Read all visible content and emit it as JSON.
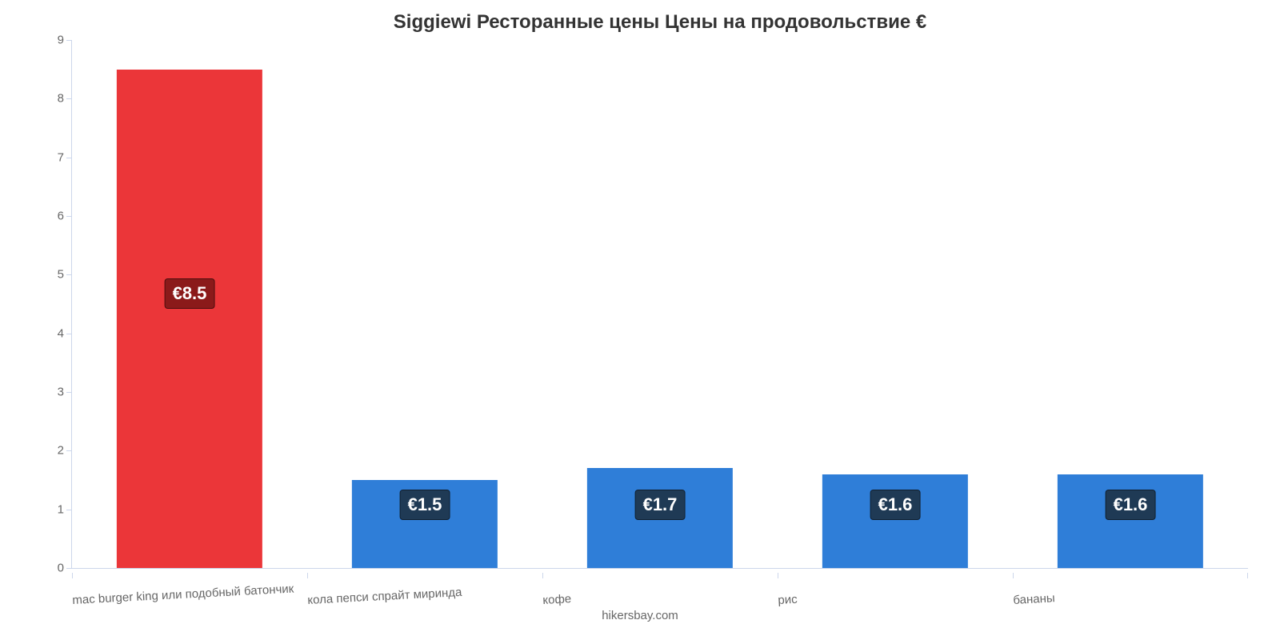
{
  "chart": {
    "type": "bar",
    "title": "Siggiewi Ресторанные цены Цены на продовольствие €",
    "title_fontsize": 24,
    "title_color": "#333333",
    "background_color": "#ffffff",
    "axis_line_color": "#ccd6eb",
    "tick_font_color": "#666666",
    "tick_fontsize": 15,
    "ylim": [
      0,
      9
    ],
    "yticks": [
      0,
      1,
      2,
      3,
      4,
      5,
      6,
      7,
      8,
      9
    ],
    "bar_width_ratio": 0.62,
    "label_fontsize": 22,
    "label_bg_dark_red": "#8b1a1a",
    "label_bg_dark_blue": "#1f3a55",
    "categories": [
      "mac burger king или подобный батончик",
      "кола пепси спрайт миринда",
      "кофе",
      "рис",
      "бананы"
    ],
    "values": [
      8.5,
      1.5,
      1.7,
      1.6,
      1.6
    ],
    "value_labels": [
      "€8.5",
      "€1.5",
      "€1.7",
      "€1.6",
      "€1.6"
    ],
    "bar_colors": [
      "#eb3639",
      "#2f7ed8",
      "#2f7ed8",
      "#2f7ed8",
      "#2f7ed8"
    ],
    "label_colors": [
      "#8b1a1a",
      "#1f3a55",
      "#1f3a55",
      "#1f3a55",
      "#1f3a55"
    ],
    "credits": "hikersbay.com"
  }
}
